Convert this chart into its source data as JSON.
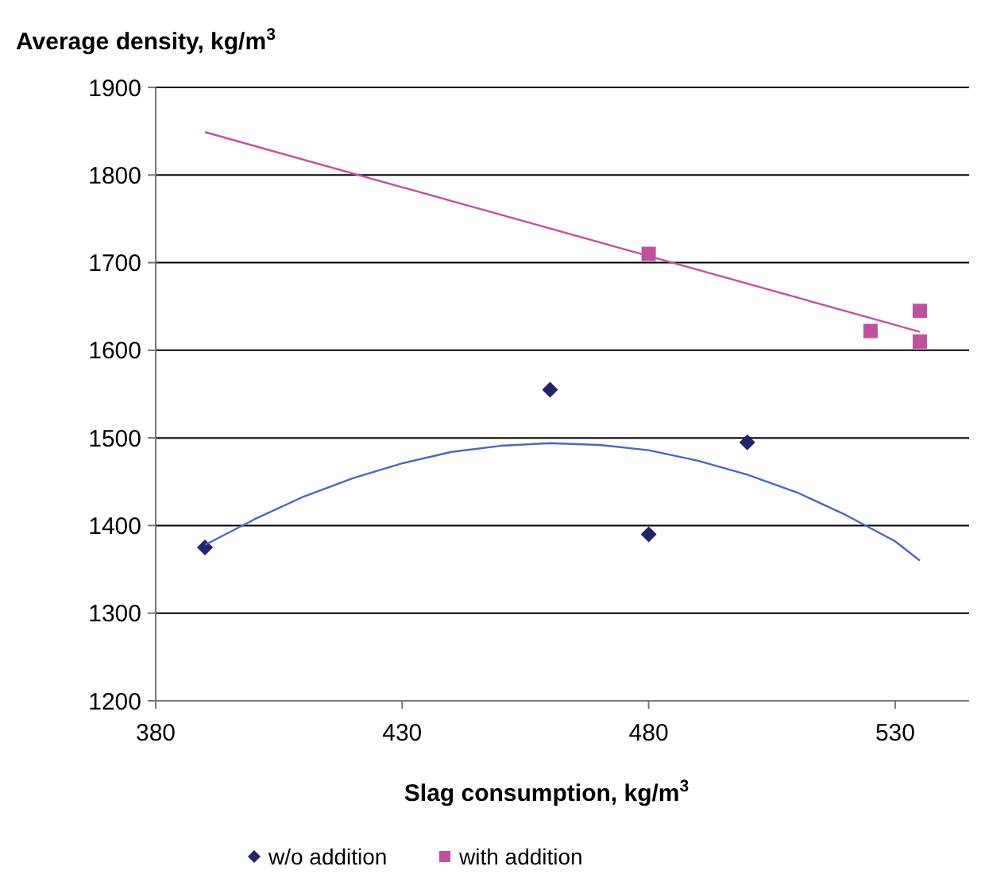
{
  "chart_data": {
    "type": "scatter",
    "xlabel": "Slag consumption, kg/m$^{3}$",
    "ylabel": "Average density, kg/m$^{3}$",
    "xlim": [
      380,
      545
    ],
    "xticks": [
      380,
      430,
      480,
      530
    ],
    "ylim": [
      1200,
      1900
    ],
    "yticks": [
      1200,
      1300,
      1400,
      1500,
      1600,
      1700,
      1800,
      1900
    ],
    "grid": "y",
    "legend": "bottom",
    "series": [
      {
        "name": "w/o addition",
        "color": "#23236e",
        "marker": "diamond",
        "x": [
          390,
          460,
          480,
          500
        ],
        "values": [
          1375,
          1555,
          1390,
          1495
        ]
      },
      {
        "name": "with addition",
        "color": "#c0509e",
        "marker": "square",
        "x": [
          480,
          525,
          535,
          535
        ],
        "values": [
          1710,
          1622,
          1645,
          1610
        ]
      },
      {
        "type": "line",
        "color": "#4a66c8",
        "marker": "none",
        "x": [
          390,
          400,
          410,
          420,
          430,
          440,
          450,
          460,
          470,
          480,
          490,
          500,
          510,
          520,
          530,
          535
        ],
        "values": [
          1378,
          1407,
          1433,
          1454,
          1471,
          1484,
          1491,
          1494,
          1492,
          1486,
          1474,
          1458,
          1438,
          1412,
          1382,
          1360
        ]
      },
      {
        "type": "line",
        "color": "#c8509e",
        "marker": "none",
        "x": [
          390,
          535
        ],
        "values": [
          1849,
          1621
        ]
      }
    ]
  }
}
